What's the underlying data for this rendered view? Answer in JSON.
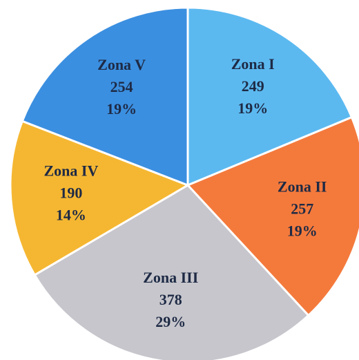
{
  "chart_data": {
    "type": "pie",
    "categories": [
      "Zona I",
      "Zona II",
      "Zona III",
      "Zona IV",
      "Zona V"
    ],
    "values": [
      249,
      257,
      378,
      190,
      254
    ],
    "percent_labels": [
      "19%",
      "19%",
      "29%",
      "14%",
      "19%"
    ],
    "colors": [
      "#5cb9f0",
      "#f47a3c",
      "#c6c6cc",
      "#f5b732",
      "#3b8fe0"
    ],
    "start_angle": 0,
    "direction": "clockwise"
  }
}
